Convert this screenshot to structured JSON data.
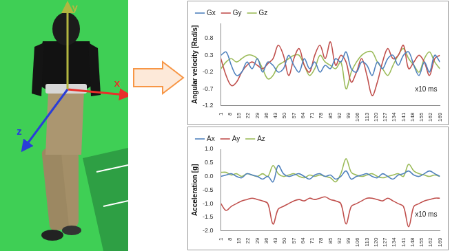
{
  "chart_data": [
    {
      "type": "line",
      "y_label": "Angular velocity [Rad/s]",
      "annotation": "x10 ms",
      "x": [
        1,
        5,
        9,
        13,
        17,
        21,
        25,
        29,
        33,
        37,
        41,
        45,
        49,
        53,
        57,
        61,
        65,
        69,
        73,
        77,
        81,
        85,
        89,
        93,
        97,
        101,
        105,
        109,
        113,
        117,
        121,
        125,
        129,
        133,
        137,
        141,
        145,
        149,
        153,
        157,
        161,
        165,
        169
      ],
      "xlim": [
        1,
        169
      ],
      "xticks": [
        1,
        8,
        15,
        22,
        29,
        36,
        43,
        50,
        57,
        64,
        71,
        78,
        85,
        92,
        99,
        106,
        113,
        120,
        127,
        134,
        141,
        148,
        155,
        162,
        169
      ],
      "ylim": [
        -1.2,
        1.25
      ],
      "yticks": [
        -1.2,
        -0.7,
        -0.2,
        0.3,
        0.8
      ],
      "grid": false,
      "legend": "top",
      "series": [
        {
          "name": "Gx",
          "color": "#4f81bd",
          "values": [
            0.3,
            0.4,
            0.0,
            -0.3,
            -0.2,
            0.1,
            -0.1,
            0.2,
            -0.2,
            0.1,
            0.0,
            -0.2,
            -0.1,
            0.3,
            0.0,
            -0.2,
            0.2,
            -0.1,
            0.1,
            -0.2,
            0.0,
            -0.1,
            0.2,
            0.1,
            0.4,
            -0.1,
            -0.2,
            0.1,
            0.0,
            -0.3,
            0.1,
            -0.1,
            0.2,
            0.3,
            0.0,
            0.3,
            0.4,
            0.0,
            -0.3,
            0.1,
            -0.2,
            0.3,
            0.1
          ]
        },
        {
          "name": "Gy",
          "color": "#c0504d",
          "values": [
            0.2,
            -0.3,
            -0.6,
            -0.5,
            -0.2,
            0.0,
            0.1,
            0.0,
            -0.1,
            0.05,
            0.2,
            0.6,
            0.3,
            -0.3,
            0.2,
            0.5,
            0.0,
            -0.2,
            0.3,
            0.6,
            0.2,
            0.7,
            0.0,
            0.3,
            0.1,
            -0.5,
            -0.2,
            0.2,
            -0.3,
            -0.9,
            -0.5,
            0.1,
            0.5,
            0.2,
            0.3,
            0.6,
            -0.1,
            0.1,
            0.3,
            0.1,
            -0.3,
            0.2,
            0.3
          ]
        },
        {
          "name": "Gz",
          "color": "#9bbb59",
          "values": [
            -0.1,
            0.1,
            0.2,
            0.1,
            0.2,
            0.3,
            0.3,
            0.2,
            -0.1,
            -0.4,
            -0.3,
            0.0,
            0.1,
            0.2,
            0.3,
            0.3,
            0.0,
            -0.3,
            -0.1,
            0.3,
            0.1,
            0.0,
            -0.1,
            0.1,
            -0.7,
            -0.2,
            0.1,
            0.3,
            0.4,
            0.4,
            0.1,
            -0.1,
            -0.3,
            0.0,
            0.3,
            0.5,
            0.2,
            0.0,
            -0.2,
            0.2,
            0.4,
            0.1,
            -0.1
          ]
        }
      ]
    },
    {
      "type": "line",
      "y_label": "Acceleration [g]",
      "annotation": "x10 ms",
      "x": [
        1,
        5,
        9,
        13,
        17,
        21,
        25,
        29,
        33,
        37,
        41,
        45,
        49,
        53,
        57,
        61,
        65,
        69,
        73,
        77,
        81,
        85,
        89,
        93,
        97,
        101,
        105,
        109,
        113,
        117,
        121,
        125,
        129,
        133,
        137,
        141,
        145,
        149,
        153,
        157,
        161,
        165,
        169
      ],
      "xlim": [
        1,
        169
      ],
      "xticks": [
        1,
        8,
        15,
        22,
        29,
        36,
        43,
        50,
        57,
        64,
        71,
        78,
        85,
        92,
        99,
        106,
        113,
        120,
        127,
        134,
        141,
        148,
        155,
        162,
        169
      ],
      "ylim": [
        -2.0,
        1.0
      ],
      "yticks": [
        {
          "value": -2.0,
          "label": "-2.0"
        },
        -1.5,
        {
          "value": -1.0,
          "label": "-1.0"
        },
        -0.5,
        {
          "value": 0.0,
          "label": "0.0"
        },
        0.5,
        {
          "value": 1.0,
          "label": "1.0"
        }
      ],
      "grid": false,
      "legend": "top",
      "series": [
        {
          "name": "Ax",
          "color": "#4f81bd",
          "values": [
            0.0,
            0.05,
            0.1,
            0.0,
            -0.05,
            0.1,
            0.05,
            0.0,
            -0.1,
            0.0,
            -0.2,
            0.4,
            0.1,
            0.0,
            0.05,
            0.1,
            0.0,
            -0.1,
            0.05,
            0.1,
            0.0,
            0.05,
            -0.1,
            0.0,
            0.2,
            -0.1,
            0.0,
            0.05,
            0.1,
            0.0,
            -0.05,
            0.1,
            0.0,
            -0.1,
            0.05,
            0.1,
            0.2,
            0.05,
            0.0,
            0.1,
            0.2,
            0.1,
            0.0
          ]
        },
        {
          "name": "Ay",
          "color": "#c0504d",
          "values": [
            -1.0,
            -1.25,
            -1.1,
            -1.0,
            -0.9,
            -0.85,
            -0.8,
            -0.85,
            -0.9,
            -1.0,
            -1.75,
            -1.2,
            -1.1,
            -1.0,
            -0.9,
            -0.85,
            -0.9,
            -0.8,
            -0.85,
            -0.8,
            -0.75,
            -0.85,
            -0.9,
            -1.0,
            -1.75,
            -1.1,
            -1.0,
            -0.9,
            -0.8,
            -0.8,
            -0.85,
            -0.9,
            -0.8,
            -0.9,
            -1.0,
            -1.1,
            -1.85,
            -1.1,
            -1.0,
            -0.9,
            -0.85,
            -0.8,
            -0.8
          ]
        },
        {
          "name": "Az",
          "color": "#9bbb59",
          "values": [
            0.15,
            0.15,
            0.05,
            0.1,
            0.0,
            0.1,
            0.05,
            0.0,
            0.1,
            0.0,
            0.4,
            0.1,
            0.0,
            0.05,
            0.1,
            0.0,
            -0.05,
            0.05,
            0.0,
            0.05,
            0.0,
            -0.05,
            -0.2,
            0.1,
            0.65,
            0.15,
            0.05,
            0.0,
            0.05,
            0.1,
            0.0,
            -0.05,
            0.0,
            0.05,
            0.1,
            0.0,
            0.45,
            0.2,
            0.1,
            0.05,
            0.0,
            0.05,
            0.0
          ]
        }
      ]
    }
  ],
  "figure": {
    "sensor_axes": [
      {
        "label": "x",
        "color": "#e8302a"
      },
      {
        "label": "y",
        "color": "#b3b640"
      },
      {
        "label": "z",
        "color": "#2a3ed8"
      }
    ]
  }
}
